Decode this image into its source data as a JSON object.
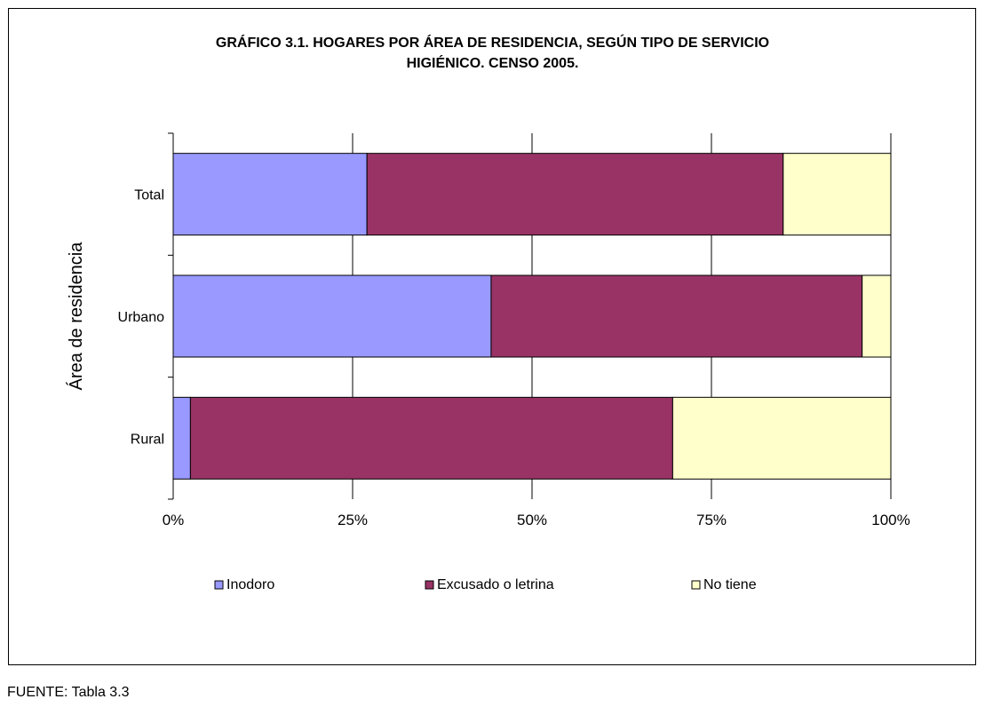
{
  "chart_data": {
    "type": "bar",
    "orientation": "horizontal",
    "stacked": "percent",
    "title": "GRÁFICO 3.1. HOGARES POR ÁREA DE RESIDENCIA, SEGÚN TIPO DE SERVICIO HIGIÉNICO. CENSO 2005.",
    "title_lines": [
      "GRÁFICO 3.1. HOGARES POR ÁREA DE RESIDENCIA, SEGÚN TIPO DE SERVICIO",
      "HIGIÉNICO. CENSO 2005."
    ],
    "ylabel": "Área de residencia",
    "xlabel": "",
    "categories": [
      "Total",
      "Urbano",
      "Rural"
    ],
    "x_ticks": [
      "0%",
      "25%",
      "50%",
      "75%",
      "100%"
    ],
    "xlim": [
      0,
      100
    ],
    "grid": "vertical",
    "legend_position": "bottom",
    "series": [
      {
        "name": "Inodoro",
        "color": "#9999ff",
        "values": [
          27,
          44.3,
          2.4
        ]
      },
      {
        "name": "Excusado o letrina",
        "color": "#993366",
        "values": [
          58,
          51.7,
          67.2
        ]
      },
      {
        "name": "No tiene",
        "color": "#ffffcc",
        "values": [
          15,
          4,
          30.4
        ]
      }
    ]
  },
  "footer": {
    "source": "FUENTE: Tabla 3.3"
  }
}
